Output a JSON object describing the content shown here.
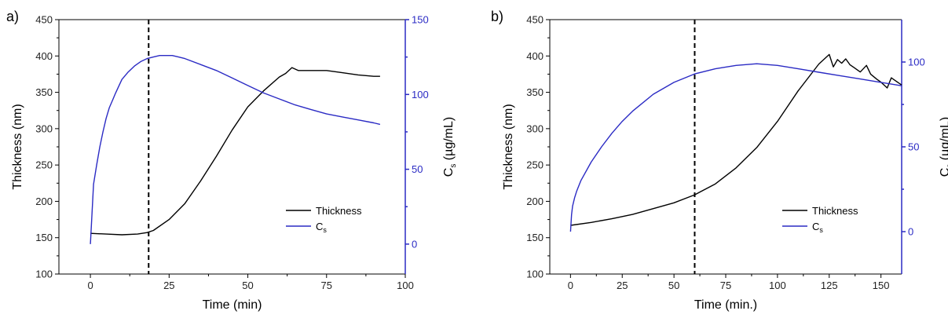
{
  "chart_data": [
    {
      "type": "line",
      "panel_label": "a)",
      "xlabel": "Time (min)",
      "ylabel": "Thickness (nm)",
      "ylabel_right": {
        "main": "C",
        "sub": "s",
        "rest": " (µg/mL)"
      },
      "xlim": [
        -10,
        100
      ],
      "ylim": [
        100,
        450
      ],
      "ylim_right": [
        -20,
        150
      ],
      "xticks": [
        0,
        25,
        50,
        75,
        100
      ],
      "yticks": [
        100,
        150,
        200,
        250,
        300,
        350,
        400,
        450
      ],
      "yticks_right": [
        0,
        50,
        100,
        150
      ],
      "vline_x": 18.5,
      "legend_position": "center-right",
      "series": [
        {
          "name": "Thickness",
          "axis": "left",
          "color": "#000000",
          "x": [
            0,
            5,
            10,
            15,
            18,
            20,
            25,
            30,
            35,
            40,
            45,
            50,
            55,
            60,
            62,
            64,
            66,
            70,
            75,
            80,
            85,
            90,
            92
          ],
          "y": [
            156,
            155,
            154,
            155,
            157,
            160,
            175,
            197,
            228,
            262,
            298,
            330,
            352,
            371,
            376,
            384,
            380,
            380,
            380,
            377,
            374,
            372,
            372
          ]
        },
        {
          "name": "C",
          "name_sub": "s",
          "axis": "right",
          "color": "#2b2bc4",
          "x": [
            0,
            1,
            2,
            3,
            4,
            5,
            6,
            7,
            8,
            10,
            12,
            14,
            16,
            18,
            20,
            22,
            24,
            26,
            28,
            30,
            35,
            40,
            45,
            50,
            55,
            60,
            65,
            70,
            75,
            80,
            85,
            90,
            92
          ],
          "y": [
            0,
            40,
            53,
            65,
            75,
            84,
            91,
            96,
            101,
            110,
            115,
            119,
            122,
            124,
            125,
            126,
            126,
            126,
            125,
            124,
            120,
            116,
            111,
            106,
            101,
            97,
            93,
            90,
            87,
            85,
            83,
            81,
            80
          ]
        }
      ]
    },
    {
      "type": "line",
      "panel_label": "b)",
      "xlabel": "Time (min.)",
      "ylabel": "Thickness (nm)",
      "ylabel_right": {
        "main": "C",
        "sub": "s",
        "rest": " (µg/mL)"
      },
      "xlim": [
        -10,
        160
      ],
      "ylim": [
        100,
        450
      ],
      "ylim_right": [
        -25,
        125
      ],
      "xticks": [
        0,
        25,
        50,
        75,
        100,
        125,
        150
      ],
      "yticks": [
        100,
        150,
        200,
        250,
        300,
        350,
        400,
        450
      ],
      "yticks_right": [
        0,
        50,
        100
      ],
      "vline_x": 60,
      "legend_position": "center-right",
      "series": [
        {
          "name": "Thickness",
          "axis": "left",
          "color": "#000000",
          "x": [
            0,
            10,
            20,
            30,
            40,
            50,
            60,
            70,
            80,
            90,
            100,
            110,
            120,
            125,
            127,
            129,
            131,
            133,
            135,
            137,
            140,
            143,
            145,
            148,
            150,
            153,
            155,
            157,
            160
          ],
          "y": [
            167,
            171,
            176,
            182,
            190,
            198,
            209,
            224,
            246,
            274,
            310,
            352,
            389,
            402,
            385,
            395,
            390,
            396,
            388,
            384,
            378,
            387,
            375,
            368,
            364,
            356,
            370,
            366,
            360
          ]
        },
        {
          "name": "C",
          "name_sub": "s",
          "axis": "right",
          "color": "#2b2bc4",
          "x": [
            0,
            0.5,
            1,
            2,
            3,
            5,
            10,
            15,
            20,
            25,
            30,
            40,
            50,
            60,
            70,
            80,
            90,
            100,
            110,
            120,
            130,
            140,
            150,
            155,
            160
          ],
          "y": [
            0,
            10,
            15,
            20,
            24,
            30,
            41,
            50,
            58,
            65,
            71,
            81,
            88,
            93,
            96,
            98,
            99,
            98,
            96,
            94,
            92,
            90,
            88,
            87,
            86
          ]
        }
      ]
    }
  ]
}
